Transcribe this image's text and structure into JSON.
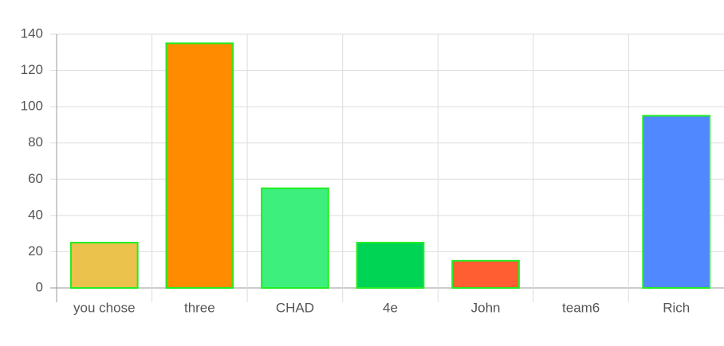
{
  "chart_data": {
    "type": "bar",
    "categories": [
      "you chose",
      "three",
      "CHAD",
      "4e",
      "John",
      "team6",
      "Rich"
    ],
    "values": [
      25,
      135,
      55,
      25,
      15,
      0,
      95
    ],
    "colors": [
      "#ebc24b",
      "#ff8c00",
      "#3df07e",
      "#00d455",
      "#ff5e33",
      "#cccccc",
      "#5088ff"
    ],
    "border_color": "#22ee22",
    "ylim": [
      0,
      140
    ],
    "yticks": [
      0,
      20,
      40,
      60,
      80,
      100,
      120,
      140
    ],
    "grid": true
  }
}
